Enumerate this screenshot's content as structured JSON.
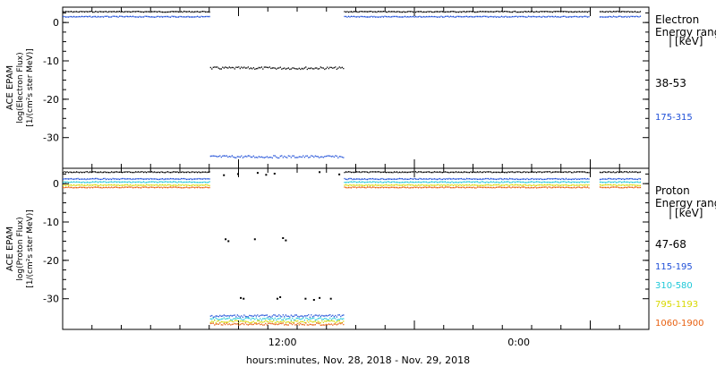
{
  "footer": {
    "xaxis_label": "hours:minutes, Nov. 28, 2018 - Nov. 29, 2018"
  },
  "colors": {
    "black": "#000000",
    "blue": "#1f4fd8",
    "cyan": "#1ec8d8",
    "yellow": "#d8d800",
    "orange": "#e86010"
  },
  "chart_data": [
    {
      "type": "scatter",
      "panel": "electron",
      "ylabel_lines": [
        "ACE EPAM",
        "log(Electron Flux)",
        "[1/(cm²s ster MeV)]"
      ],
      "legend_title_lines": [
        "Electron",
        "Energy ranges",
        "[keV]"
      ],
      "x_tick_labels": [
        "12:00",
        "0:00"
      ],
      "y_ticks": [
        0,
        -10,
        -20,
        -30
      ],
      "ylim": [
        -38,
        4
      ],
      "series": [
        {
          "name": "38-53",
          "color": "black",
          "segments": [
            {
              "from": 0.0,
              "to": 0.262,
              "value": 2.8
            },
            {
              "from": 0.262,
              "to": 0.5,
              "value": -11.9
            },
            {
              "from": 0.5,
              "to": 0.935,
              "value": 2.8
            },
            {
              "from": 0.954,
              "to": 1.026,
              "value": 2.8
            }
          ]
        },
        {
          "name": "175-315",
          "color": "blue",
          "segments": [
            {
              "from": 0.0,
              "to": 0.262,
              "value": 1.5
            },
            {
              "from": 0.262,
              "to": 0.5,
              "value": -35.0
            },
            {
              "from": 0.5,
              "to": 0.935,
              "value": 1.5
            },
            {
              "from": 0.954,
              "to": 1.026,
              "value": 1.5
            }
          ]
        }
      ]
    },
    {
      "type": "scatter",
      "panel": "proton",
      "ylabel_lines": [
        "ACE EPAM",
        "log(Proton Flux)",
        "[1/(cm²s ster MeV)]"
      ],
      "legend_title_lines": [
        "Proton",
        "Energy ranges",
        "[keV]"
      ],
      "x_tick_labels": [
        "12:00",
        "0:00"
      ],
      "y_ticks": [
        0,
        -10,
        -20,
        -30
      ],
      "ylim": [
        -38,
        4
      ],
      "series": [
        {
          "name": "47-68",
          "color": "black",
          "segments": [
            {
              "from": 0.0,
              "to": 0.262,
              "value": 3.0
            },
            {
              "from": 0.5,
              "to": 0.935,
              "value": 3.0
            },
            {
              "from": 0.954,
              "to": 1.026,
              "value": 3.0
            }
          ],
          "points": [
            [
              0.285,
              2.2
            ],
            [
              0.31,
              2.5
            ],
            [
              0.345,
              2.8
            ],
            [
              0.36,
              2.3
            ],
            [
              0.375,
              2.6
            ],
            [
              0.455,
              3.0
            ],
            [
              0.49,
              2.4
            ],
            [
              0.288,
              -14.5
            ],
            [
              0.293,
              -15
            ],
            [
              0.34,
              -14.5
            ],
            [
              0.39,
              -14.2
            ],
            [
              0.395,
              -14.8
            ],
            [
              0.315,
              -29.8
            ],
            [
              0.32,
              -30
            ],
            [
              0.38,
              -30
            ],
            [
              0.385,
              -29.6
            ],
            [
              0.43,
              -30
            ],
            [
              0.445,
              -30.3
            ],
            [
              0.455,
              -29.8
            ],
            [
              0.475,
              -30
            ]
          ]
        },
        {
          "name": "115-195",
          "color": "blue",
          "segments": [
            {
              "from": 0.0,
              "to": 0.262,
              "value": 1.2
            },
            {
              "from": 0.262,
              "to": 0.5,
              "value": -34.5
            },
            {
              "from": 0.5,
              "to": 0.935,
              "value": 1.2
            },
            {
              "from": 0.954,
              "to": 1.026,
              "value": 1.2
            }
          ]
        },
        {
          "name": "310-580",
          "color": "cyan",
          "segments": [
            {
              "from": 0.0,
              "to": 0.262,
              "value": 0.4
            },
            {
              "from": 0.262,
              "to": 0.5,
              "value": -35.3
            },
            {
              "from": 0.5,
              "to": 0.935,
              "value": 0.4
            },
            {
              "from": 0.954,
              "to": 1.026,
              "value": 0.4
            }
          ]
        },
        {
          "name": "795-1193",
          "color": "yellow",
          "segments": [
            {
              "from": 0.0,
              "to": 0.262,
              "value": -0.4
            },
            {
              "from": 0.262,
              "to": 0.5,
              "value": -36.0
            },
            {
              "from": 0.5,
              "to": 0.935,
              "value": -0.4
            },
            {
              "from": 0.954,
              "to": 1.026,
              "value": -0.4
            }
          ]
        },
        {
          "name": "1060-1900",
          "color": "orange",
          "segments": [
            {
              "from": 0.0,
              "to": 0.262,
              "value": -1.0
            },
            {
              "from": 0.262,
              "to": 0.5,
              "value": -36.6
            },
            {
              "from": 0.5,
              "to": 0.935,
              "value": -1.0
            },
            {
              "from": 0.954,
              "to": 1.026,
              "value": -1.0
            }
          ]
        }
      ]
    }
  ]
}
